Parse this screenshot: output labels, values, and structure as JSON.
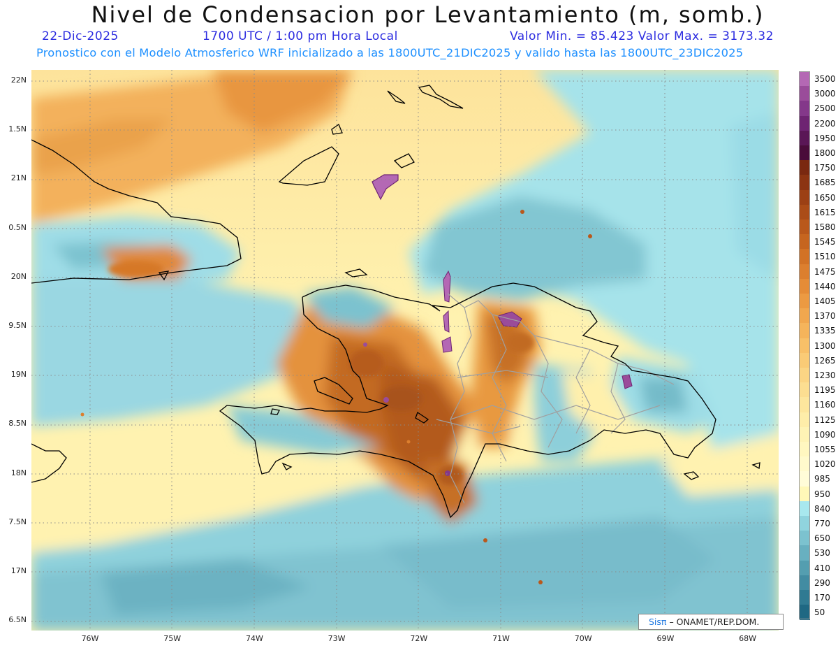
{
  "header": {
    "title": "Nivel de Condensacion por Levantamiento (m, somb.)",
    "date": "22-Dic-2025",
    "time": "1700 UTC / 1:00 pm Hora Local",
    "minmax": "Valor Min. = 85.423  Valor Max. = 3173.32",
    "info": "Pronostico con el Modelo Atmosferico WRF inicializado a las 1800UTC_21DIC2025 y valido hasta las  1800UTC_23DIC2025"
  },
  "axes": {
    "lat_labels": [
      "22N",
      "1.5N",
      "21N",
      "0.5N",
      "20N",
      "9.5N",
      "19N",
      "8.5N",
      "18N",
      "7.5N",
      "17N",
      "6.5N"
    ],
    "lon_labels": [
      "76W",
      "75W",
      "74W",
      "73W",
      "72W",
      "71W",
      "70W",
      "69W",
      "68W"
    ]
  },
  "colorbar": {
    "labels": [
      "3500",
      "3000",
      "2500",
      "2200",
      "1950",
      "1800",
      "1750",
      "1685",
      "1650",
      "1615",
      "1580",
      "1545",
      "1510",
      "1475",
      "1440",
      "1405",
      "1370",
      "1335",
      "1300",
      "1265",
      "1230",
      "1195",
      "1160",
      "1125",
      "1090",
      "1055",
      "1020",
      "985",
      "950",
      "840",
      "770",
      "650",
      "530",
      "410",
      "290",
      "170",
      "50"
    ],
    "colors": [
      "#b468b4",
      "#9a4c9a",
      "#84388a",
      "#6e2472",
      "#5a1656",
      "#4a0c3a",
      "#7a2810",
      "#8c3412",
      "#9c4014",
      "#ab4c17",
      "#b9581b",
      "#c6651f",
      "#d27225",
      "#dc7f2e",
      "#e58c37",
      "#ec9a42",
      "#f1a74e",
      "#f5b45b",
      "#f8c068",
      "#facb76",
      "#fbd584",
      "#fcde91",
      "#fde69d",
      "#feeda9",
      "#fef3b5",
      "#fff7c0",
      "#fffacc",
      "#fffcd8",
      "#fff8b8",
      "#a8e8ee",
      "#90d4de",
      "#7cc2cf",
      "#68b0c0",
      "#549eb0",
      "#428ca2",
      "#307a92",
      "#1f6883"
    ]
  },
  "credit": {
    "brand": "Sisπ",
    "agency": "– ONAMET/REP.DOM."
  }
}
